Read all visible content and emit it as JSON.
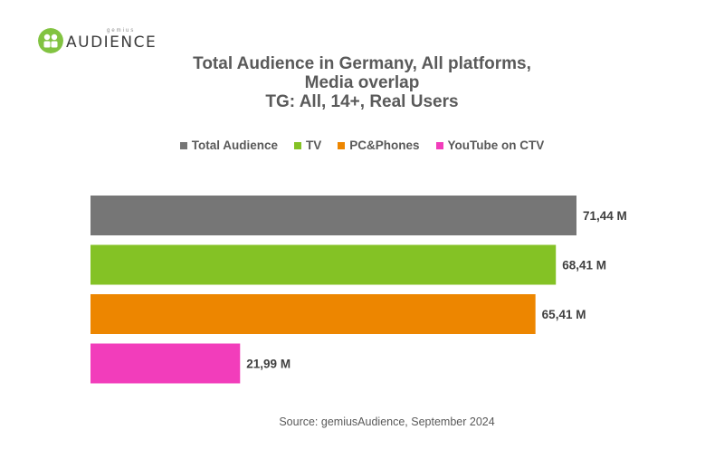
{
  "logo": {
    "brand_small": "gemius",
    "brand_word": "AUDIENCE",
    "color": "#82c341"
  },
  "chart_data": {
    "type": "bar",
    "orientation": "horizontal",
    "title": [
      "Total Audience in Germany, All platforms,",
      "Media overlap",
      "TG: All, 14+, Real Users"
    ],
    "categories": [
      "Total Audience",
      "TV",
      "PC&Phones",
      "YouTube on CTV"
    ],
    "values": [
      71.44,
      68.41,
      65.41,
      21.99
    ],
    "data_labels": [
      "71,44 M",
      "68,41 M",
      "65,41 M",
      "21,99 M"
    ],
    "colors": [
      "#767676",
      "#84c225",
      "#ed8600",
      "#f23dbb"
    ],
    "unit": "M",
    "legend_position": "top",
    "grid": false,
    "xlim": [
      0,
      71.44
    ]
  },
  "legend": [
    {
      "label": "Total Audience",
      "color": "#767676"
    },
    {
      "label": "TV",
      "color": "#84c225"
    },
    {
      "label": "PC&Phones",
      "color": "#ed8600"
    },
    {
      "label": "YouTube on CTV",
      "color": "#f23dbb"
    }
  ],
  "source": "Source: gemiusAudience, September 2024"
}
